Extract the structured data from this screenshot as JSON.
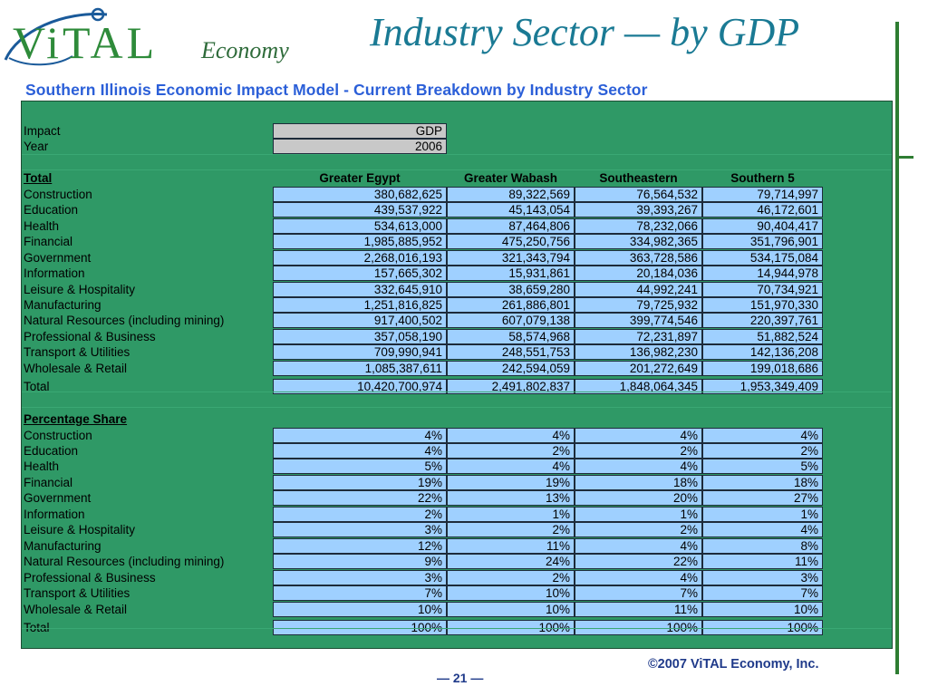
{
  "header": {
    "logo_text": "ViTAL",
    "logo_sub": "Economy",
    "title": "Industry Sector — by GDP"
  },
  "subtitle": "Southern Illinois Economic Impact Model - Current Breakdown by Industry Sector",
  "params": {
    "impact_label": "Impact",
    "impact_value": "GDP",
    "year_label": "Year",
    "year_value": "2006"
  },
  "columns": [
    "Greater Egypt",
    "Greater Wabash",
    "Southeastern",
    "Southern 5"
  ],
  "total_section": {
    "heading": "Total",
    "rows": [
      {
        "label": "Construction",
        "values": [
          "380,682,625",
          "89,322,569",
          "76,564,532",
          "79,714,997"
        ]
      },
      {
        "label": "Education",
        "values": [
          "439,537,922",
          "45,143,054",
          "39,393,267",
          "46,172,601"
        ]
      },
      {
        "label": "Health",
        "values": [
          "534,613,000",
          "87,464,806",
          "78,232,066",
          "90,404,417"
        ]
      },
      {
        "label": "Financial",
        "values": [
          "1,985,885,952",
          "475,250,756",
          "334,982,365",
          "351,796,901"
        ]
      },
      {
        "label": "Government",
        "values": [
          "2,268,016,193",
          "321,343,794",
          "363,728,586",
          "534,175,084"
        ]
      },
      {
        "label": "Information",
        "values": [
          "157,665,302",
          "15,931,861",
          "20,184,036",
          "14,944,978"
        ]
      },
      {
        "label": "Leisure & Hospitality",
        "values": [
          "332,645,910",
          "38,659,280",
          "44,992,241",
          "70,734,921"
        ]
      },
      {
        "label": "Manufacturing",
        "values": [
          "1,251,816,825",
          "261,886,801",
          "79,725,932",
          "151,970,330"
        ]
      },
      {
        "label": "Natural Resources (including mining)",
        "values": [
          "917,400,502",
          "607,079,138",
          "399,774,546",
          "220,397,761"
        ]
      },
      {
        "label": "Professional & Business",
        "values": [
          "357,058,190",
          "58,574,968",
          "72,231,897",
          "51,882,524"
        ]
      },
      {
        "label": "Transport & Utilities",
        "values": [
          "709,990,941",
          "248,551,753",
          "136,982,230",
          "142,136,208"
        ]
      },
      {
        "label": "Wholesale & Retail",
        "values": [
          "1,085,387,611",
          "242,594,059",
          "201,272,649",
          "199,018,686"
        ]
      }
    ],
    "total": {
      "label": "Total",
      "values": [
        "10,420,700,974",
        "2,491,802,837",
        "1,848,064,345",
        "1,953,349,409"
      ]
    }
  },
  "percentage_section": {
    "heading": "Percentage Share",
    "rows": [
      {
        "label": "Construction",
        "values": [
          "4%",
          "4%",
          "4%",
          "4%"
        ]
      },
      {
        "label": "Education",
        "values": [
          "4%",
          "2%",
          "2%",
          "2%"
        ]
      },
      {
        "label": "Health",
        "values": [
          "5%",
          "4%",
          "4%",
          "5%"
        ]
      },
      {
        "label": "Financial",
        "values": [
          "19%",
          "19%",
          "18%",
          "18%"
        ]
      },
      {
        "label": "Government",
        "values": [
          "22%",
          "13%",
          "20%",
          "27%"
        ]
      },
      {
        "label": "Information",
        "values": [
          "2%",
          "1%",
          "1%",
          "1%"
        ]
      },
      {
        "label": "Leisure & Hospitality",
        "values": [
          "3%",
          "2%",
          "2%",
          "4%"
        ]
      },
      {
        "label": "Manufacturing",
        "values": [
          "12%",
          "11%",
          "4%",
          "8%"
        ]
      },
      {
        "label": "Natural Resources (including mining)",
        "values": [
          "9%",
          "24%",
          "22%",
          "11%"
        ]
      },
      {
        "label": "Professional & Business",
        "values": [
          "3%",
          "2%",
          "4%",
          "3%"
        ]
      },
      {
        "label": "Transport & Utilities",
        "values": [
          "7%",
          "10%",
          "7%",
          "7%"
        ]
      },
      {
        "label": "Wholesale & Retail",
        "values": [
          "10%",
          "10%",
          "11%",
          "10%"
        ]
      }
    ],
    "total": {
      "label": "Total",
      "values": [
        "100%",
        "100%",
        "100%",
        "100%"
      ]
    }
  },
  "footer": {
    "copyright": "©2007 ViTAL Economy, Inc.",
    "page": "— 21 —"
  },
  "colors": {
    "sheet_green": "#2f9966",
    "cell_blue": "#9fd0ff",
    "cell_grey": "#c8c8c8",
    "title_teal": "#1a7a94",
    "subtitle_blue": "#2b5fd8",
    "accent_green": "#2e7d32"
  }
}
